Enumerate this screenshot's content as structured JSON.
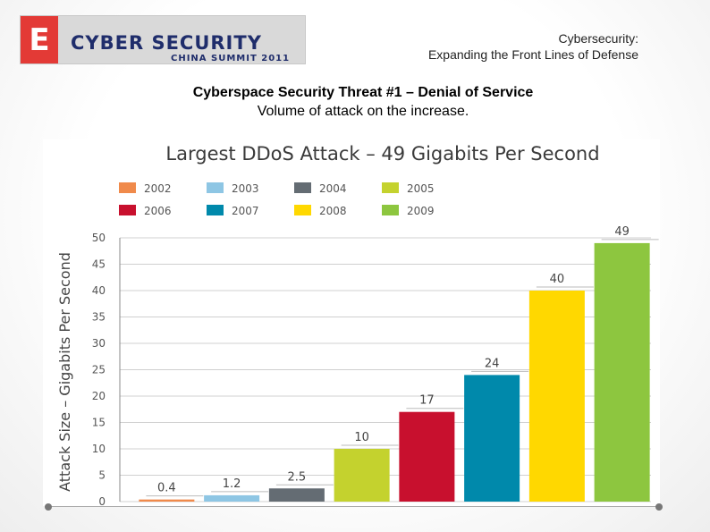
{
  "header": {
    "logo_letter": "E",
    "logo_title": "CYBER SECURITY",
    "logo_subtitle": "CHINA SUMMIT 2011",
    "topic_line1": "Cybersecurity:",
    "topic_line2": "Expanding the Front Lines of Defense"
  },
  "slide": {
    "title": "Cyberspace Security Threat #1 – Denial of Service",
    "subtitle": "Volume of attack on the increase."
  },
  "chart_data": {
    "type": "bar",
    "title": "Largest DDoS Attack – 49 Gigabits Per Second",
    "ylabel": "Attack Size – Gigabits Per Second",
    "xlabel": "",
    "ylim": [
      0,
      50
    ],
    "yticks": [
      "0",
      "5",
      "10",
      "15",
      "20",
      "25",
      "30",
      "35",
      "40",
      "45",
      "50"
    ],
    "grid": true,
    "legend_position": "top",
    "categories": [
      "2002",
      "2003",
      "2004",
      "2005",
      "2006",
      "2007",
      "2008",
      "2009"
    ],
    "values": [
      0.4,
      1.2,
      2.5,
      10,
      17,
      24,
      40,
      49
    ],
    "value_labels": [
      "0.4",
      "1.2",
      "2.5",
      "10",
      "17",
      "24",
      "40",
      "49"
    ],
    "colors": [
      "#f08a4b",
      "#8ec6e4",
      "#646c73",
      "#c4d22e",
      "#c8102e",
      "#0089ab",
      "#ffd800",
      "#8dc63f"
    ]
  }
}
